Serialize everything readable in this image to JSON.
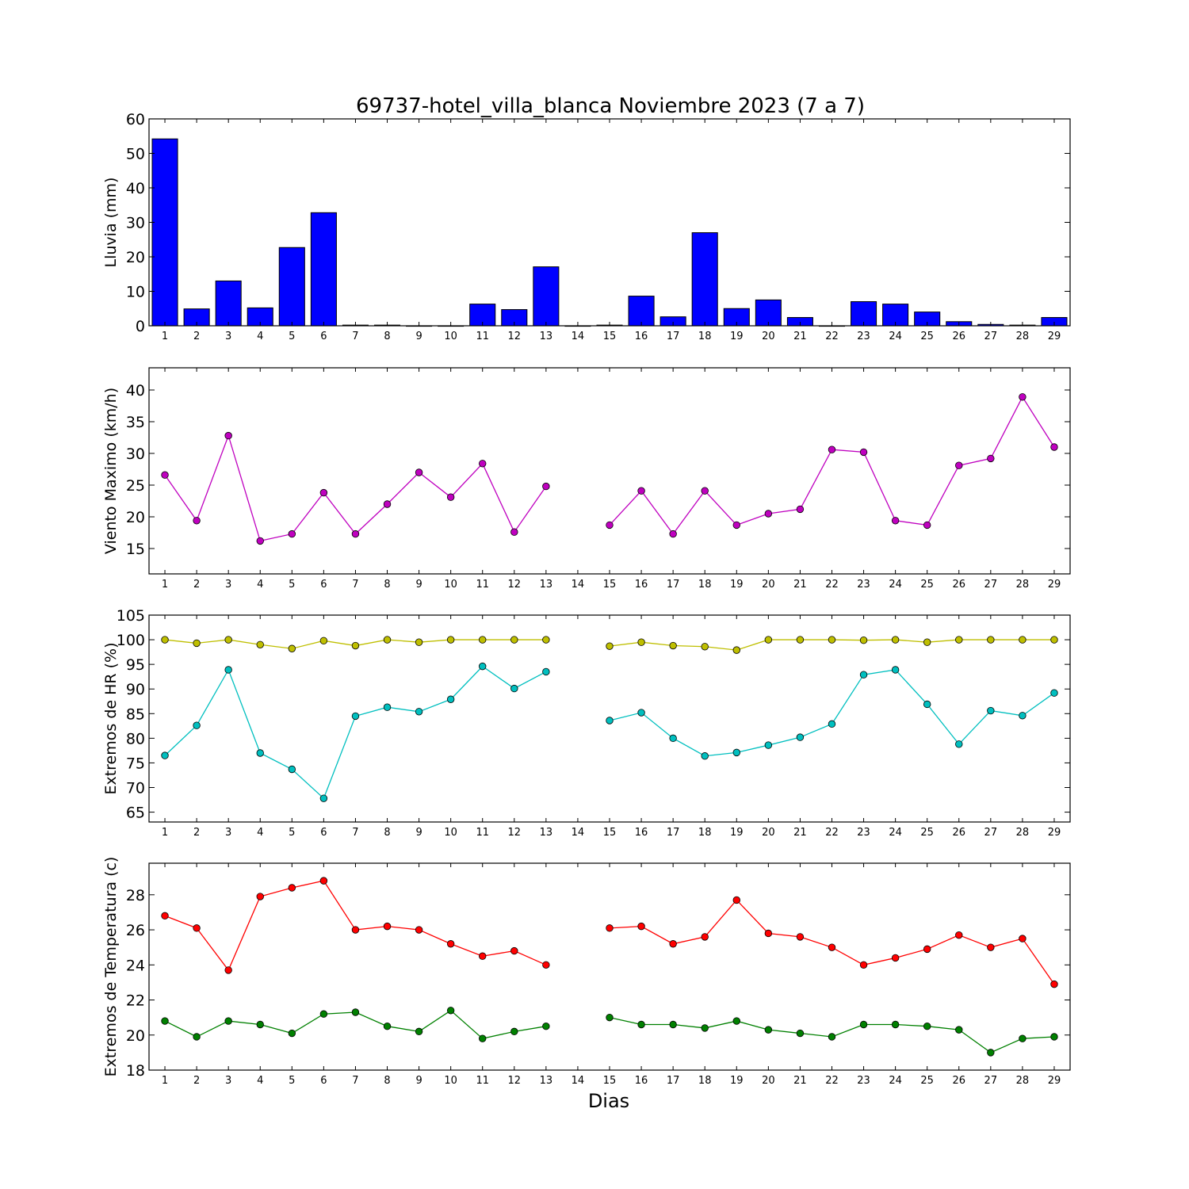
{
  "title": "69737-hotel_villa_blanca Noviembre 2023  (7 a 7)",
  "xlabel": "Dias",
  "chart_data": [
    {
      "type": "bar",
      "ylabel": "Lluvia (mm)",
      "categories": [
        "1",
        "2",
        "3",
        "4",
        "5",
        "6",
        "7",
        "8",
        "9",
        "10",
        "11",
        "12",
        "13",
        "14",
        "15",
        "16",
        "17",
        "18",
        "19",
        "20",
        "21",
        "22",
        "23",
        "24",
        "25",
        "26",
        "27",
        "28",
        "29"
      ],
      "ylim": [
        0,
        60
      ],
      "yticks": [
        0,
        10,
        20,
        30,
        40,
        50,
        60
      ],
      "series": [
        {
          "color": "#0000ff",
          "values": [
            54.2,
            4.9,
            13.0,
            5.2,
            22.7,
            32.8,
            0.2,
            0.2,
            0,
            0,
            6.3,
            4.7,
            17.1,
            0,
            0.2,
            8.6,
            2.6,
            27.0,
            5.0,
            7.5,
            2.4,
            0,
            7.0,
            6.3,
            4.0,
            1.2,
            0.4,
            0.2,
            2.4
          ]
        }
      ]
    },
    {
      "type": "line",
      "ylabel": "Viento Maximo (km/h)",
      "categories": [
        "1",
        "2",
        "3",
        "4",
        "5",
        "6",
        "7",
        "8",
        "9",
        "10",
        "11",
        "12",
        "13",
        "14",
        "15",
        "16",
        "17",
        "18",
        "19",
        "20",
        "21",
        "22",
        "23",
        "24",
        "25",
        "26",
        "27",
        "28",
        "29"
      ],
      "ylim": [
        11,
        43.5
      ],
      "yticks": [
        15,
        20,
        25,
        30,
        35,
        40
      ],
      "series": [
        {
          "color": "#bf00bf",
          "values": [
            26.6,
            19.4,
            32.8,
            16.2,
            17.3,
            23.8,
            17.3,
            22.0,
            27.0,
            23.1,
            28.4,
            17.6,
            24.8,
            null,
            18.7,
            24.1,
            17.3,
            24.1,
            18.7,
            20.5,
            21.2,
            30.6,
            30.2,
            19.4,
            18.7,
            28.1,
            29.2,
            38.9,
            31.0
          ]
        }
      ]
    },
    {
      "type": "line",
      "ylabel": "Extremos de HR (%)",
      "categories": [
        "1",
        "2",
        "3",
        "4",
        "5",
        "6",
        "7",
        "8",
        "9",
        "10",
        "11",
        "12",
        "13",
        "14",
        "15",
        "16",
        "17",
        "18",
        "19",
        "20",
        "21",
        "22",
        "23",
        "24",
        "25",
        "26",
        "27",
        "28",
        "29"
      ],
      "ylim": [
        63,
        105
      ],
      "yticks": [
        65,
        70,
        75,
        80,
        85,
        90,
        95,
        100,
        105
      ],
      "series": [
        {
          "color": "#bfbf00",
          "values": [
            100,
            99.3,
            100,
            99,
            98.2,
            99.8,
            98.8,
            100,
            99.5,
            100,
            100,
            100,
            100,
            null,
            98.7,
            99.5,
            98.8,
            98.6,
            97.9,
            100,
            100,
            100,
            99.9,
            100,
            99.5,
            100,
            100,
            100,
            100
          ]
        },
        {
          "color": "#00bfbf",
          "values": [
            76.5,
            82.6,
            93.9,
            77,
            73.7,
            67.8,
            84.5,
            86.3,
            85.4,
            87.9,
            94.6,
            90.1,
            93.5,
            null,
            83.6,
            85.2,
            80,
            76.4,
            77.1,
            78.6,
            80.2,
            82.9,
            92.9,
            93.9,
            86.9,
            78.8,
            85.6,
            84.6,
            89.2
          ]
        }
      ]
    },
    {
      "type": "line",
      "ylabel": "Extremos de Temperatura (c)",
      "categories": [
        "1",
        "2",
        "3",
        "4",
        "5",
        "6",
        "7",
        "8",
        "9",
        "10",
        "11",
        "12",
        "13",
        "14",
        "15",
        "16",
        "17",
        "18",
        "19",
        "20",
        "21",
        "22",
        "23",
        "24",
        "25",
        "26",
        "27",
        "28",
        "29"
      ],
      "ylim": [
        18,
        29.8
      ],
      "yticks": [
        18,
        20,
        22,
        24,
        26,
        28
      ],
      "series": [
        {
          "color": "#ff0000",
          "values": [
            26.8,
            26.1,
            23.7,
            27.9,
            28.4,
            28.8,
            26.0,
            26.2,
            26.0,
            25.2,
            24.5,
            24.8,
            24.0,
            null,
            26.1,
            26.2,
            25.2,
            25.6,
            27.7,
            25.8,
            25.6,
            25.0,
            24.0,
            24.4,
            24.9,
            25.7,
            25.0,
            25.5,
            22.9
          ]
        },
        {
          "color": "#008000",
          "values": [
            20.8,
            19.9,
            20.8,
            20.6,
            20.1,
            21.2,
            21.3,
            20.5,
            20.2,
            21.4,
            19.8,
            20.2,
            20.5,
            null,
            21.0,
            20.6,
            20.6,
            20.4,
            20.8,
            20.3,
            20.1,
            19.9,
            20.6,
            20.6,
            20.5,
            20.3,
            19.0,
            19.8,
            19.9
          ]
        }
      ]
    }
  ]
}
